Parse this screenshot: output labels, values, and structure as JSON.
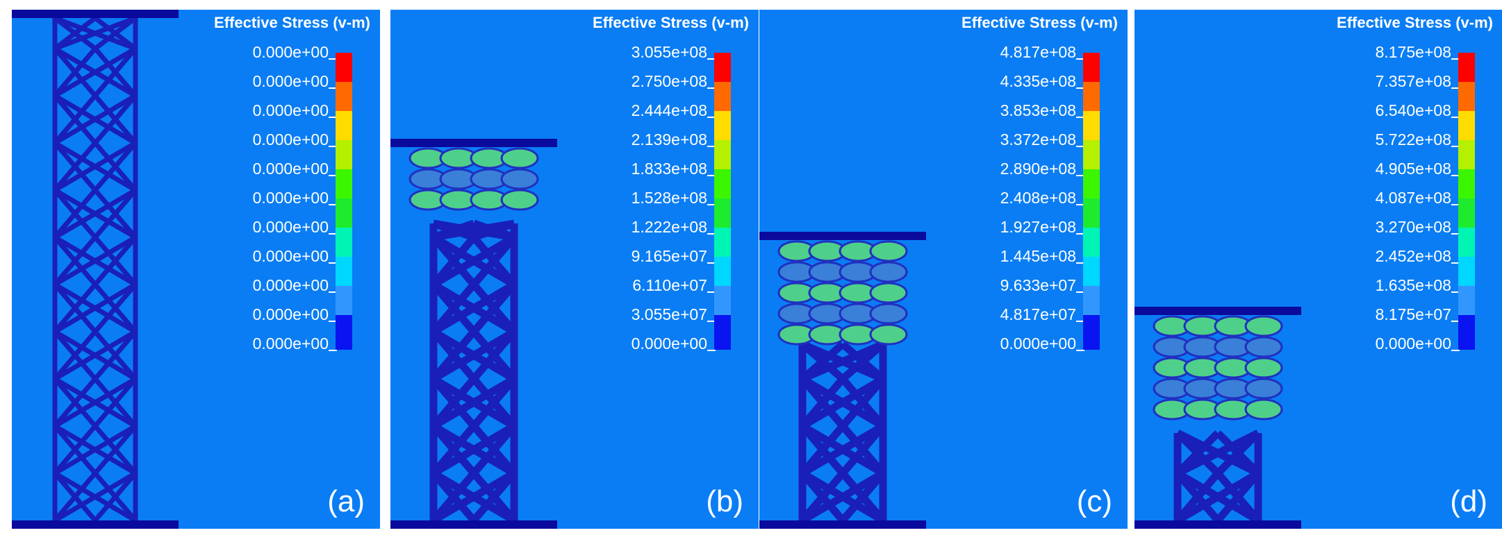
{
  "figure": {
    "panels": [
      {
        "label": "(a)",
        "legend_title": "Effective Stress (v-m)",
        "values": [
          "0.000e+00",
          "0.000e+00",
          "0.000e+00",
          "0.000e+00",
          "0.000e+00",
          "0.000e+00",
          "0.000e+00",
          "0.000e+00",
          "0.000e+00",
          "0.000e+00",
          "0.000e+00"
        ]
      },
      {
        "label": "(b)",
        "legend_title": "Effective Stress (v-m)",
        "values": [
          "3.055e+08",
          "2.750e+08",
          "2.444e+08",
          "2.139e+08",
          "1.833e+08",
          "1.528e+08",
          "1.222e+08",
          "9.165e+07",
          "6.110e+07",
          "3.055e+07",
          "0.000e+00"
        ]
      },
      {
        "label": "(c)",
        "legend_title": "Effective Stress (v-m)",
        "values": [
          "4.817e+08",
          "4.335e+08",
          "3.853e+08",
          "3.372e+08",
          "2.890e+08",
          "2.408e+08",
          "1.927e+08",
          "1.445e+08",
          "9.633e+07",
          "4.817e+07",
          "0.000e+00"
        ]
      },
      {
        "label": "(d)",
        "legend_title": "Effective Stress (v-m)",
        "values": [
          "8.175e+08",
          "7.357e+08",
          "6.540e+08",
          "5.722e+08",
          "4.905e+08",
          "4.087e+08",
          "3.270e+08",
          "2.452e+08",
          "1.635e+08",
          "8.175e+07",
          "0.000e+00"
        ]
      }
    ],
    "colormap": [
      "#ff0000",
      "#ff6a00",
      "#ffdc00",
      "#b4f000",
      "#3cf500",
      "#1eeb2d",
      "#00f5b4",
      "#00d7ff",
      "#3296ff",
      "#0a14f0"
    ],
    "colors": {
      "background": "#0a7df4",
      "structure": "#1a1fb8",
      "plate": "#0a0a9c",
      "stressed": "#4fd08a"
    }
  }
}
